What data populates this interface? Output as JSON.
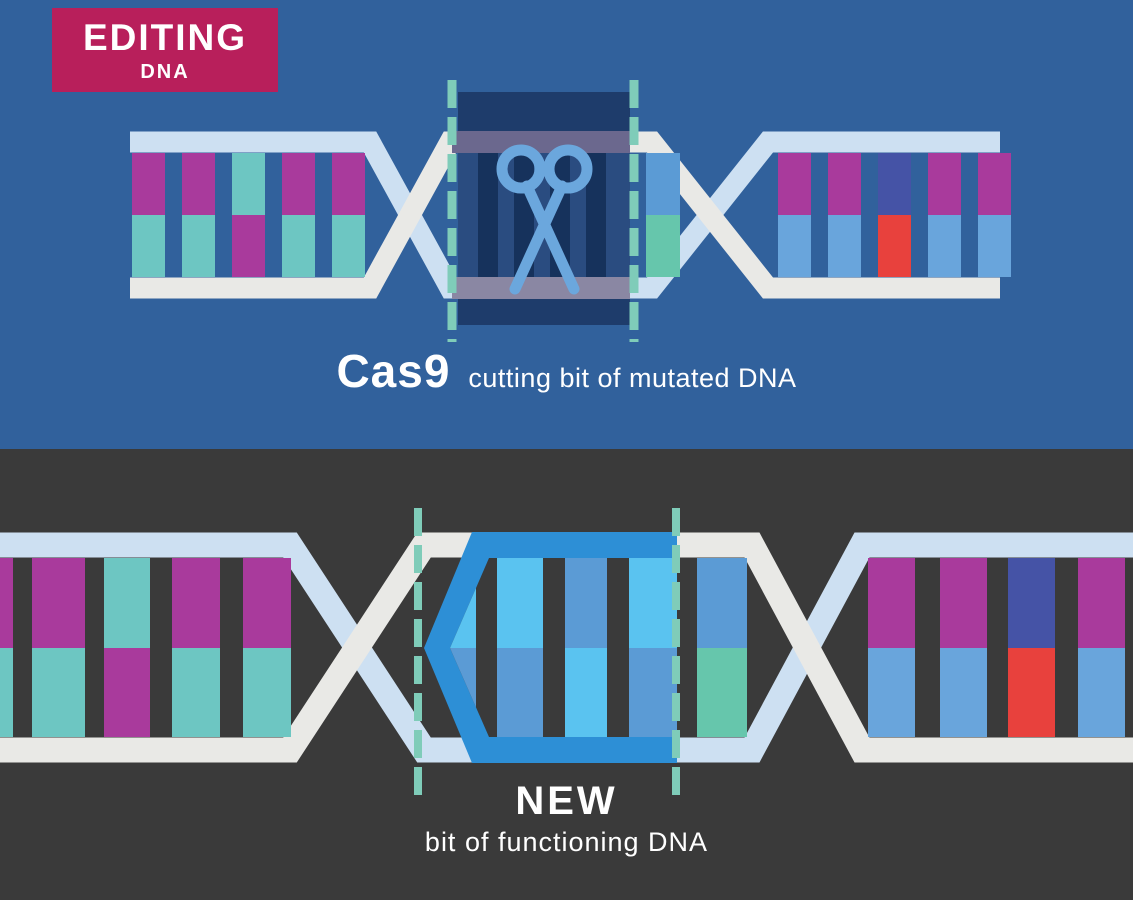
{
  "badge": {
    "title": "EDITING",
    "subtitle": "DNA",
    "bg": "#b81f5b",
    "text_color": "#ffffff"
  },
  "panels": {
    "editing": {
      "bg": "#31619c",
      "caption_main": "Cas9",
      "caption_sub": "cutting bit of mutated DNA",
      "icon": "scissors-icon"
    },
    "new": {
      "bg": "#3a3a3a",
      "caption_main": "NEW",
      "caption_sub": "bit of functioning DNA"
    }
  },
  "palette": {
    "magenta": "#a93a9c",
    "teal": "#6dc6c2",
    "blue": "#69a5dc",
    "indigo": "#4553a6",
    "red": "#e8413d",
    "green": "#66c6ac",
    "sky": "#5b9bd5",
    "cyan": "#5ac3f0",
    "bright_blue": "#2d8fd6",
    "strand_light_blue": "#cde0f2",
    "strand_white": "#e9e9e6",
    "box_navy": "#1e3c6b",
    "box_mid": "#2a4c80",
    "box_dim_bar": "#16325c",
    "muted_band_top": "#6b688e",
    "muted_band_bottom": "#8a87a3",
    "scissors": "#6ba7dd",
    "cut_dash": "#7fccb9",
    "charcoal": "#3a3a3a"
  },
  "helix_top": {
    "left_pairs": [
      [
        "magenta",
        "teal"
      ],
      [
        "magenta",
        "teal"
      ],
      [
        "teal",
        "magenta"
      ],
      [
        "magenta",
        "teal"
      ],
      [
        "magenta",
        "teal"
      ]
    ],
    "box_adjacent_pair": [
      "sky",
      "green"
    ],
    "right_pairs": [
      [
        "magenta",
        "blue"
      ],
      [
        "magenta",
        "blue"
      ],
      [
        "indigo",
        "red"
      ],
      [
        "magenta",
        "blue"
      ],
      [
        "magenta",
        "blue"
      ]
    ]
  },
  "helix_bottom": {
    "left_pairs": [
      [
        "magenta",
        "teal"
      ],
      [
        "magenta",
        "teal"
      ],
      [
        "teal",
        "magenta"
      ],
      [
        "magenta",
        "teal"
      ],
      [
        "magenta",
        "teal"
      ]
    ],
    "new_pairs": [
      [
        "cyan",
        "sky"
      ],
      [
        "cyan",
        "sky"
      ],
      [
        "sky",
        "cyan"
      ],
      [
        "cyan",
        "sky"
      ]
    ],
    "right_adjacent_pair": [
      "sky",
      "green"
    ],
    "right_pairs": [
      [
        "magenta",
        "blue"
      ],
      [
        "magenta",
        "blue"
      ],
      [
        "indigo",
        "red"
      ],
      [
        "magenta",
        "blue"
      ]
    ]
  }
}
